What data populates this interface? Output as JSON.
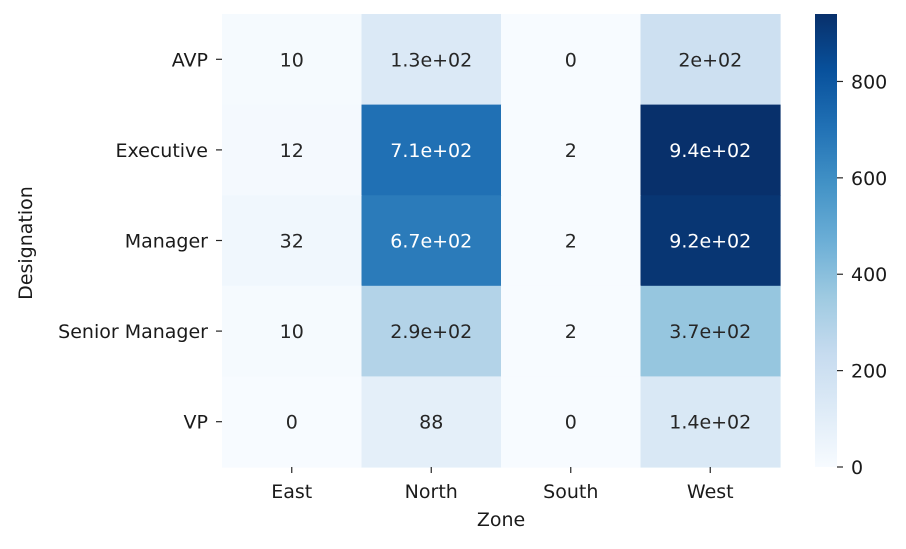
{
  "chart_data": {
    "type": "heatmap",
    "title": "",
    "xlabel": "Zone",
    "ylabel": "Designation",
    "x_categories": [
      "East",
      "North",
      "South",
      "West"
    ],
    "y_categories": [
      "AVP",
      "Executive",
      "Manager",
      "Senior Manager",
      "VP"
    ],
    "values": [
      [
        10,
        130,
        0,
        200
      ],
      [
        12,
        710,
        2,
        940
      ],
      [
        32,
        670,
        2,
        920
      ],
      [
        10,
        290,
        2,
        370
      ],
      [
        0,
        88,
        0,
        140
      ]
    ],
    "annotations": [
      [
        "10",
        "1.3e+02",
        "0",
        "2e+02"
      ],
      [
        "12",
        "7.1e+02",
        "2",
        "9.4e+02"
      ],
      [
        "32",
        "6.7e+02",
        "2",
        "9.2e+02"
      ],
      [
        "10",
        "2.9e+02",
        "2",
        "3.7e+02"
      ],
      [
        "0",
        "88",
        "0",
        "1.4e+02"
      ]
    ],
    "colormap": "Blues",
    "colorbar": {
      "range": [
        0,
        940
      ],
      "ticks": [
        0,
        200,
        400,
        600,
        800
      ],
      "tick_labels": [
        "0",
        "200",
        "400",
        "600",
        "800"
      ]
    },
    "colors": {
      "low": "#f7fbff",
      "high": "#08306b"
    }
  }
}
